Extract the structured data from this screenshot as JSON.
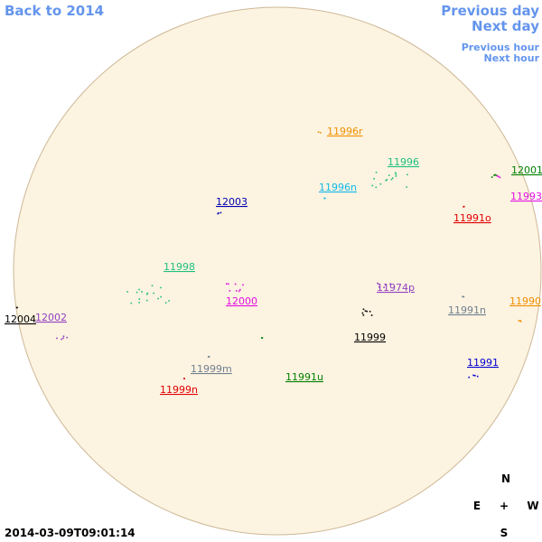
{
  "nav": {
    "back": "Back to 2014",
    "previous_day": "Previous day",
    "next_day": "Next day",
    "previous_hour": "Previous hour",
    "next_hour": "Next hour"
  },
  "regions": [
    {
      "label": "11996r",
      "color": "#f09000"
    },
    {
      "label": "11996",
      "color": "#20c080"
    },
    {
      "label": "12001",
      "color": "#008000"
    },
    {
      "label": "11996n",
      "color": "#10b8e8"
    },
    {
      "label": "11993",
      "color": "#e010e0"
    },
    {
      "label": "12003",
      "color": "#0000b0"
    },
    {
      "label": "11991o",
      "color": "#e00000"
    },
    {
      "label": "11998",
      "color": "#20c080"
    },
    {
      "label": "11974p",
      "color": "#9040c0"
    },
    {
      "label": "12000",
      "color": "#e010e0"
    },
    {
      "label": "11990",
      "color": "#f09000"
    },
    {
      "label": "11991n",
      "color": "#708090"
    },
    {
      "label": "12004",
      "color": "#000000"
    },
    {
      "label": "12002",
      "color": "#9040c0"
    },
    {
      "label": "11999",
      "color": "#000000"
    },
    {
      "label": "11991",
      "color": "#0000d0"
    },
    {
      "label": "11999m",
      "color": "#708090"
    },
    {
      "label": "11991u",
      "color": "#008000"
    },
    {
      "label": "11999n",
      "color": "#e00000"
    }
  ],
  "timestamp": "2014-03-09T09:01:14",
  "compass": {
    "north": "N",
    "east": "E",
    "center": "+",
    "west": "W",
    "south": "S"
  }
}
